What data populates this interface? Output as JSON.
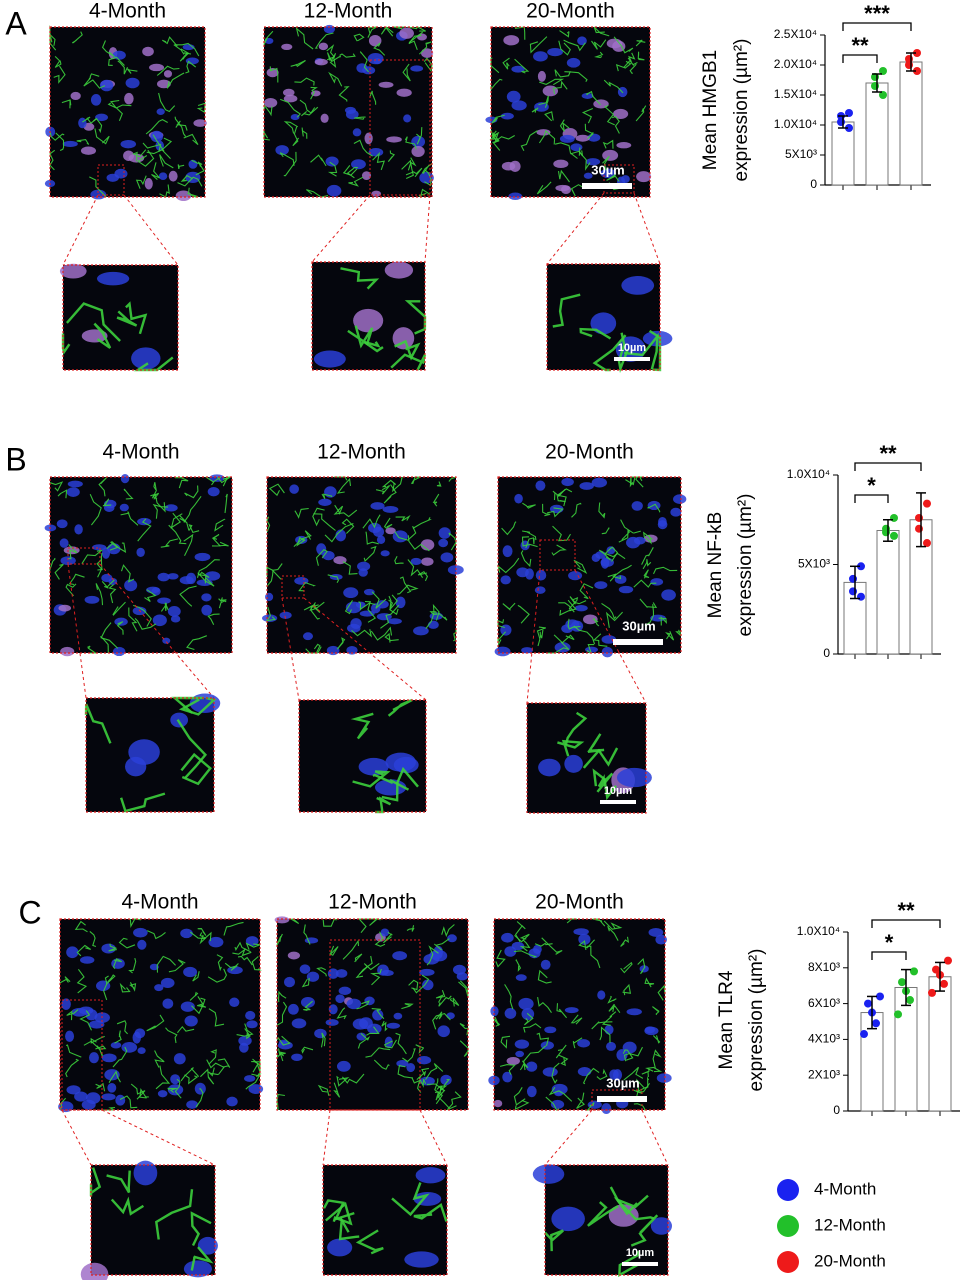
{
  "figure": {
    "legend": [
      {
        "name": "4-Month",
        "color": "#1a22f0"
      },
      {
        "name": "12-Month",
        "color": "#22c02a"
      },
      {
        "name": "20-Month",
        "color": "#ee1a1a"
      }
    ],
    "panels": [
      {
        "letter": "A",
        "columns": [
          "4-Month",
          "12-Month",
          "20-Month"
        ],
        "scale_bar": "30µm",
        "inset_scale_bar": "10µm"
      },
      {
        "letter": "B",
        "columns": [
          "4-Month",
          "12-Month",
          "20-Month"
        ],
        "scale_bar": "30µm",
        "inset_scale_bar": "10µm"
      },
      {
        "letter": "C",
        "columns": [
          "4-Month",
          "12-Month",
          "20-Month"
        ],
        "scale_bar": "30µm",
        "inset_scale_bar": "10µm"
      }
    ]
  },
  "chart_data": [
    {
      "type": "bar",
      "ylabel": [
        "Mean HMGB1",
        "expression (µm²)"
      ],
      "categories": [
        null,
        null,
        null
      ],
      "values": [
        10500,
        17000,
        20500
      ],
      "errors": [
        1000,
        1500,
        1500
      ],
      "points": [
        [
          9500,
          10500,
          11500,
          12000
        ],
        [
          15000,
          16500,
          18000,
          19000
        ],
        [
          19000,
          20000,
          21000,
          22000
        ]
      ],
      "ylim": [
        0,
        25000
      ],
      "yticks": [
        0,
        {
          "value": 5000,
          "label": "5X10³"
        },
        {
          "value": 10000,
          "label": "1.0X10⁴"
        },
        {
          "value": 15000,
          "label": "1.5X10⁴"
        },
        {
          "value": 20000,
          "label": "2.0X10⁴"
        },
        {
          "value": 25000,
          "label": "2.5X10⁴"
        }
      ],
      "significance": [
        {
          "label": "**",
          "from": 0,
          "to": 1
        },
        {
          "label": "***",
          "from": 0,
          "to": 2
        }
      ]
    },
    {
      "type": "bar",
      "ylabel": [
        "Mean NF-kB",
        "expression (µm²)"
      ],
      "categories": [
        null,
        null,
        null
      ],
      "values": [
        4000,
        6900,
        7500
      ],
      "errors": [
        900,
        600,
        1500
      ],
      "points": [
        [
          4900,
          4200,
          3500,
          3200
        ],
        [
          7600,
          7000,
          6800,
          6600
        ],
        [
          8400,
          7600,
          7000,
          6200
        ]
      ],
      "ylim": [
        0,
        10000
      ],
      "yticks": [
        0,
        {
          "value": 5000,
          "label": "5X10³"
        },
        {
          "value": 10000,
          "label": "1.0X10⁴"
        }
      ],
      "significance": [
        {
          "label": "*",
          "from": 0,
          "to": 1
        },
        {
          "label": "**",
          "from": 0,
          "to": 2
        }
      ]
    },
    {
      "type": "bar",
      "ylabel": [
        "Mean TLR4",
        "expression (µm²)"
      ],
      "categories": [
        null,
        null,
        null
      ],
      "values": [
        5500,
        6900,
        7500
      ],
      "errors": [
        900,
        1000,
        800
      ],
      "points": [
        [
          6400,
          6000,
          5500,
          4900,
          4300
        ],
        [
          7800,
          7200,
          6700,
          6200,
          5400
        ],
        [
          8400,
          7900,
          7600,
          7100,
          6600
        ]
      ],
      "ylim": [
        0,
        10000
      ],
      "yticks": [
        0,
        {
          "value": 2000,
          "label": "2X10³"
        },
        {
          "value": 4000,
          "label": "4X10³"
        },
        {
          "value": 6000,
          "label": "6X10³"
        },
        {
          "value": 8000,
          "label": "8X10³"
        },
        {
          "value": 10000,
          "label": "1.0X10⁴"
        }
      ],
      "significance": [
        {
          "label": "*",
          "from": 0,
          "to": 1
        },
        {
          "label": "**",
          "from": 0,
          "to": 2
        }
      ]
    }
  ]
}
